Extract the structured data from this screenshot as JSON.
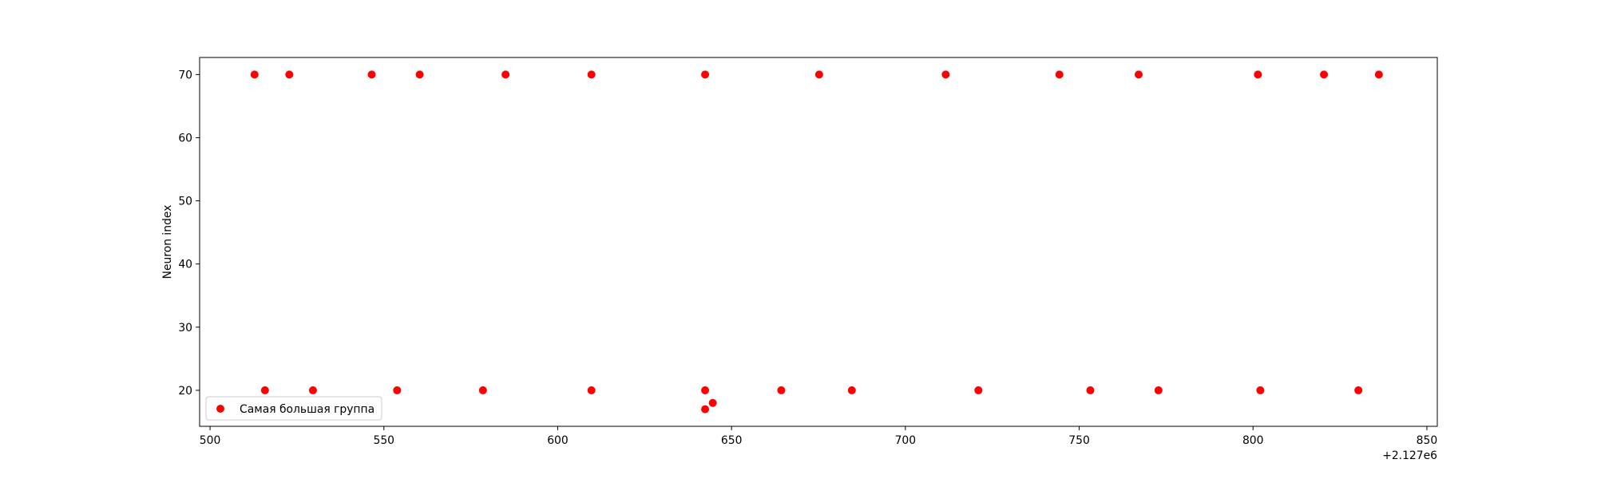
{
  "chart_data": {
    "type": "scatter",
    "title": "",
    "xlabel": "",
    "ylabel": "Neuron index",
    "x_offset_label": "+2.127e6",
    "xlim": [
      497,
      853
    ],
    "ylim": [
      14.3,
      72.7
    ],
    "x_ticks": [
      500,
      550,
      600,
      650,
      700,
      750,
      800,
      850
    ],
    "y_ticks": [
      20,
      30,
      40,
      50,
      60,
      70
    ],
    "grid": false,
    "legend_position": "lower-left",
    "series": [
      {
        "name": "Самая большая группа",
        "color": "#ff0000",
        "marker": "circle",
        "points": [
          [
            512.8,
            70
          ],
          [
            522.8,
            70
          ],
          [
            546.5,
            70
          ],
          [
            560.3,
            70
          ],
          [
            585.0,
            70
          ],
          [
            609.7,
            70
          ],
          [
            642.4,
            70
          ],
          [
            675.2,
            70
          ],
          [
            711.6,
            70
          ],
          [
            744.3,
            70
          ],
          [
            767.1,
            70
          ],
          [
            801.4,
            70
          ],
          [
            820.4,
            70
          ],
          [
            836.2,
            70
          ],
          [
            515.8,
            20
          ],
          [
            529.6,
            20
          ],
          [
            553.8,
            20
          ],
          [
            578.5,
            20
          ],
          [
            609.7,
            20
          ],
          [
            642.4,
            20
          ],
          [
            664.3,
            20
          ],
          [
            684.6,
            20
          ],
          [
            721.0,
            20
          ],
          [
            753.2,
            20
          ],
          [
            772.8,
            20
          ],
          [
            802.1,
            20
          ],
          [
            830.3,
            20
          ],
          [
            642.4,
            17
          ],
          [
            644.6,
            18
          ]
        ]
      }
    ]
  }
}
